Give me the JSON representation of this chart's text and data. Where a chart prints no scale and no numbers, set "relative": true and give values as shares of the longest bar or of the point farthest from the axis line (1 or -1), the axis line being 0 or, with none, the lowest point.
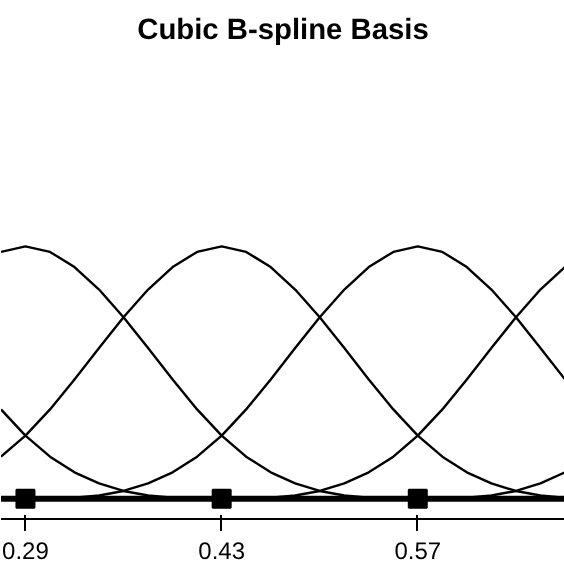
{
  "chart_data": {
    "type": "line",
    "title": "Cubic B-spline Basis",
    "relative": true,
    "grid": false,
    "line_style": "solid",
    "marker": "none",
    "x": [
      0.2679,
      0.2857,
      0.3036,
      0.3214,
      0.3393,
      0.3571,
      0.375,
      0.3929,
      0.4107,
      0.4286,
      0.4464,
      0.4643,
      0.4821,
      0.5,
      0.5179,
      0.5357,
      0.5536,
      0.5714,
      0.5893,
      0.6071,
      0.625,
      0.6429,
      0.6607,
      0.6786
    ],
    "xlim": [
      0.2679,
      0.6786
    ],
    "xticks": [
      {
        "value": 0.2857,
        "label": "0.29"
      },
      {
        "value": 0.4286,
        "label": "0.43"
      },
      {
        "value": 0.5714,
        "label": "0.57"
      }
    ],
    "tick_labels": "x",
    "ref_lines": [
      {
        "axis": "y",
        "value": 0,
        "color": "#000000"
      }
    ],
    "series": [
      {
        "color": "#000000",
        "values": [
          0.354,
          0.25,
          0.167,
          0.105,
          0.061,
          0.031,
          0.013,
          0.004,
          0,
          0,
          0,
          0,
          0,
          0,
          0,
          0,
          0,
          0,
          0,
          0,
          0,
          0,
          0,
          0
        ]
      },
      {
        "color": "#000000",
        "values": [
          0.978,
          1,
          0.978,
          0.918,
          0.829,
          0.719,
          0.597,
          0.473,
          0.354,
          0.25,
          0.167,
          0.105,
          0.061,
          0.031,
          0.013,
          0.004,
          0,
          0,
          0,
          0,
          0,
          0,
          0,
          0
        ]
      },
      {
        "color": "#000000",
        "values": [
          0.167,
          0.25,
          0.354,
          0.473,
          0.597,
          0.719,
          0.829,
          0.918,
          0.978,
          1,
          0.978,
          0.918,
          0.829,
          0.719,
          0.597,
          0.473,
          0.354,
          0.25,
          0.167,
          0.105,
          0.061,
          0.031,
          0.013,
          0.004
        ]
      },
      {
        "color": "#000000",
        "values": [
          0,
          0,
          0,
          0.004,
          0.013,
          0.031,
          0.061,
          0.105,
          0.167,
          0.25,
          0.354,
          0.473,
          0.597,
          0.719,
          0.829,
          0.918,
          0.978,
          1,
          0.978,
          0.918,
          0.829,
          0.719,
          0.597,
          0.473
        ]
      },
      {
        "color": "#000000",
        "values": [
          0,
          0,
          0,
          0,
          0,
          0,
          0,
          0,
          0,
          0,
          0,
          0.004,
          0.013,
          0.031,
          0.061,
          0.105,
          0.167,
          0.25,
          0.354,
          0.473,
          0.597,
          0.719,
          0.829,
          0.918
        ]
      },
      {
        "color": "#000000",
        "values": [
          0,
          0,
          0,
          0,
          0,
          0,
          0,
          0,
          0,
          0,
          0,
          0,
          0,
          0,
          0,
          0,
          0,
          0,
          0,
          0.004,
          0.013,
          0.031,
          0.061,
          0.105
        ]
      },
      {
        "type": "scatter",
        "marker": "square",
        "color": "#000000",
        "x": [
          0.2857,
          0.4286,
          0.5714
        ],
        "values": [
          0,
          0,
          0
        ]
      }
    ]
  }
}
